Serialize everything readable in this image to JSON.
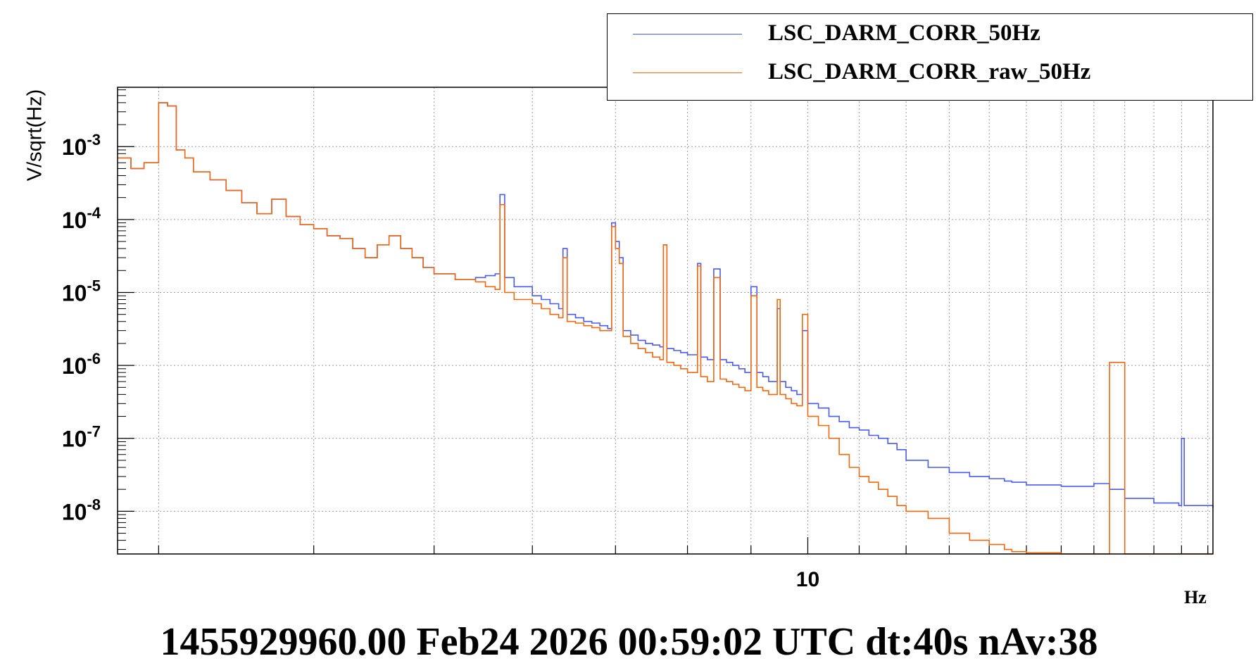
{
  "chart_data": {
    "type": "line",
    "step": true,
    "title": "",
    "xlabel": "Hz",
    "ylabel": "V/sqrt(Hz)",
    "xscale": "log",
    "yscale": "log",
    "xlim": [
      2.78,
      21.2
    ],
    "ylim": [
      2.6e-09,
      0.0065
    ],
    "grid": true,
    "legend_position": "top-right",
    "x_tick_labels": [
      {
        "value": 10,
        "label": "10"
      }
    ],
    "y_tick_labels": [
      {
        "value": 0.001,
        "label": "10",
        "exp": "-3"
      },
      {
        "value": 0.0001,
        "label": "10",
        "exp": "-4"
      },
      {
        "value": 1e-05,
        "label": "10",
        "exp": "-5"
      },
      {
        "value": 1e-06,
        "label": "10",
        "exp": "-6"
      },
      {
        "value": 1e-07,
        "label": "10",
        "exp": "-7"
      },
      {
        "value": 1e-08,
        "label": "10",
        "exp": "-8"
      }
    ],
    "series": [
      {
        "name": "LSC_DARM_CORR_50Hz",
        "color": "#4a5bf2",
        "x": [
          2.78,
          2.85,
          2.92,
          3.0,
          3.05,
          3.1,
          3.15,
          3.2,
          3.3,
          3.4,
          3.5,
          3.6,
          3.7,
          3.8,
          3.9,
          4.0,
          4.1,
          4.2,
          4.3,
          4.4,
          4.5,
          4.6,
          4.7,
          4.8,
          4.9,
          5.0,
          5.2,
          5.4,
          5.5,
          5.6,
          5.65,
          5.7,
          5.8,
          6.0,
          6.1,
          6.2,
          6.3,
          6.35,
          6.4,
          6.5,
          6.6,
          6.7,
          6.8,
          6.9,
          6.95,
          7.0,
          7.05,
          7.1,
          7.2,
          7.3,
          7.4,
          7.5,
          7.6,
          7.65,
          7.7,
          7.8,
          7.9,
          8.0,
          8.1,
          8.15,
          8.2,
          8.3,
          8.4,
          8.5,
          8.6,
          8.7,
          8.8,
          8.9,
          9.0,
          9.1,
          9.2,
          9.3,
          9.4,
          9.45,
          9.5,
          9.6,
          9.7,
          9.8,
          9.9,
          10.0,
          10.2,
          10.4,
          10.6,
          10.8,
          11.0,
          11.2,
          11.4,
          11.6,
          11.8,
          12.0,
          12.5,
          13.0,
          13.5,
          14.0,
          14.4,
          14.6,
          15.0,
          16.0,
          17.0,
          17.5,
          18.0,
          19.0,
          19.9,
          20.0,
          20.1,
          21.2
        ],
        "y": [
          0.0007,
          0.0005,
          0.0006,
          0.004,
          0.0036,
          0.0009,
          0.0007,
          0.00045,
          0.00035,
          0.00025,
          0.00017,
          0.00012,
          0.00019,
          0.00011,
          8.5e-05,
          7.5e-05,
          6e-05,
          5.5e-05,
          4e-05,
          3e-05,
          4.5e-05,
          6e-05,
          4e-05,
          3e-05,
          2.2e-05,
          1.8e-05,
          1.5e-05,
          1.6e-05,
          1.7e-05,
          1.8e-05,
          0.00022,
          1.6e-05,
          1.2e-05,
          9e-06,
          8e-06,
          7e-06,
          6e-06,
          4e-05,
          5e-06,
          4.5e-06,
          4e-06,
          3.8e-06,
          3.5e-06,
          3.2e-06,
          9e-05,
          5e-05,
          3e-05,
          3e-06,
          2.6e-06,
          2.2e-06,
          2e-06,
          1.9e-06,
          1.8e-06,
          4.5e-05,
          1.7e-06,
          1.6e-06,
          1.5e-06,
          1.4e-06,
          1.4e-06,
          2.5e-05,
          1.3e-06,
          1.2e-06,
          2.1e-05,
          1.2e-06,
          1.1e-06,
          1e-06,
          9e-07,
          8e-07,
          1.2e-05,
          8e-07,
          7e-07,
          6e-07,
          6e-07,
          6e-06,
          6e-07,
          5e-07,
          4.5e-07,
          4e-07,
          3e-06,
          3e-07,
          2.6e-07,
          2e-07,
          1.7e-07,
          1.4e-07,
          1.3e-07,
          1.1e-07,
          1e-07,
          8.5e-08,
          7e-08,
          5e-08,
          4e-08,
          3.4e-08,
          3e-08,
          2.8e-08,
          2.6e-08,
          2.5e-08,
          2.3e-08,
          2.2e-08,
          2.4e-08,
          2e-08,
          1.5e-08,
          1.3e-08,
          1.2e-08,
          1e-07,
          1.2e-08,
          1.1e-08
        ]
      },
      {
        "name": "LSC_DARM_CORR_raw_50Hz",
        "color": "#f0680f",
        "x": [
          2.78,
          2.85,
          2.92,
          3.0,
          3.05,
          3.1,
          3.15,
          3.2,
          3.3,
          3.4,
          3.5,
          3.6,
          3.7,
          3.8,
          3.9,
          4.0,
          4.1,
          4.2,
          4.3,
          4.4,
          4.5,
          4.6,
          4.7,
          4.8,
          4.9,
          5.0,
          5.2,
          5.4,
          5.5,
          5.6,
          5.65,
          5.7,
          5.8,
          6.0,
          6.1,
          6.2,
          6.3,
          6.35,
          6.4,
          6.5,
          6.6,
          6.7,
          6.8,
          6.9,
          6.95,
          7.0,
          7.05,
          7.1,
          7.2,
          7.3,
          7.4,
          7.5,
          7.6,
          7.65,
          7.7,
          7.8,
          7.9,
          8.0,
          8.1,
          8.15,
          8.2,
          8.3,
          8.4,
          8.5,
          8.6,
          8.7,
          8.8,
          8.9,
          9.0,
          9.1,
          9.2,
          9.3,
          9.4,
          9.45,
          9.5,
          9.6,
          9.7,
          9.8,
          9.9,
          10.0,
          10.2,
          10.4,
          10.6,
          10.8,
          11.0,
          11.2,
          11.4,
          11.6,
          11.8,
          12.0,
          12.5,
          13.0,
          13.5,
          14.0,
          14.4,
          14.6,
          15.0,
          16.0,
          17.0,
          17.5,
          18.0,
          19.0,
          19.9,
          20.0,
          20.1,
          21.2
        ],
        "y": [
          0.0007,
          0.0005,
          0.0006,
          0.004,
          0.0036,
          0.0009,
          0.0007,
          0.00045,
          0.00035,
          0.00025,
          0.00017,
          0.00012,
          0.00019,
          0.00011,
          8.5e-05,
          7.5e-05,
          6e-05,
          5.5e-05,
          4e-05,
          3e-05,
          4.5e-05,
          6e-05,
          4e-05,
          3e-05,
          2.2e-05,
          1.8e-05,
          1.5e-05,
          1.4e-05,
          1.2e-05,
          1.1e-05,
          0.00016,
          1e-05,
          8e-06,
          7e-06,
          6e-06,
          5e-06,
          4.5e-06,
          3e-05,
          4e-06,
          3.8e-06,
          3.5e-06,
          3.3e-06,
          3e-06,
          3e-06,
          8e-05,
          4e-05,
          2.5e-05,
          2.5e-06,
          2e-06,
          1.7e-06,
          1.5e-06,
          1.3e-06,
          1.2e-06,
          4.5e-05,
          1.1e-06,
          1e-06,
          9e-07,
          8e-07,
          8e-07,
          2.3e-05,
          7e-07,
          6e-07,
          1.6e-05,
          6.5e-07,
          6e-07,
          5.5e-07,
          5e-07,
          4.5e-07,
          9e-06,
          5e-07,
          4.5e-07,
          4e-07,
          4e-07,
          8e-06,
          4e-07,
          3.5e-07,
          3e-07,
          2.8e-07,
          5e-06,
          2e-07,
          1.5e-07,
          1e-07,
          6e-08,
          4e-08,
          3e-08,
          2.5e-08,
          2e-08,
          1.6e-08,
          1.2e-08,
          1e-08,
          8e-09,
          5e-09,
          4e-09,
          3.5e-09,
          3e-09,
          2.8e-09,
          2.7e-09,
          2.6e-09,
          2.6e-09,
          1.1e-06,
          2.6e-09,
          2.6e-09,
          2.6e-09,
          2.6e-09,
          2.6e-09,
          2.6e-09
        ]
      }
    ]
  },
  "footer_text": "1455929960.00 Feb24 2026 00:59:02 UTC dt:40s nAv:38"
}
